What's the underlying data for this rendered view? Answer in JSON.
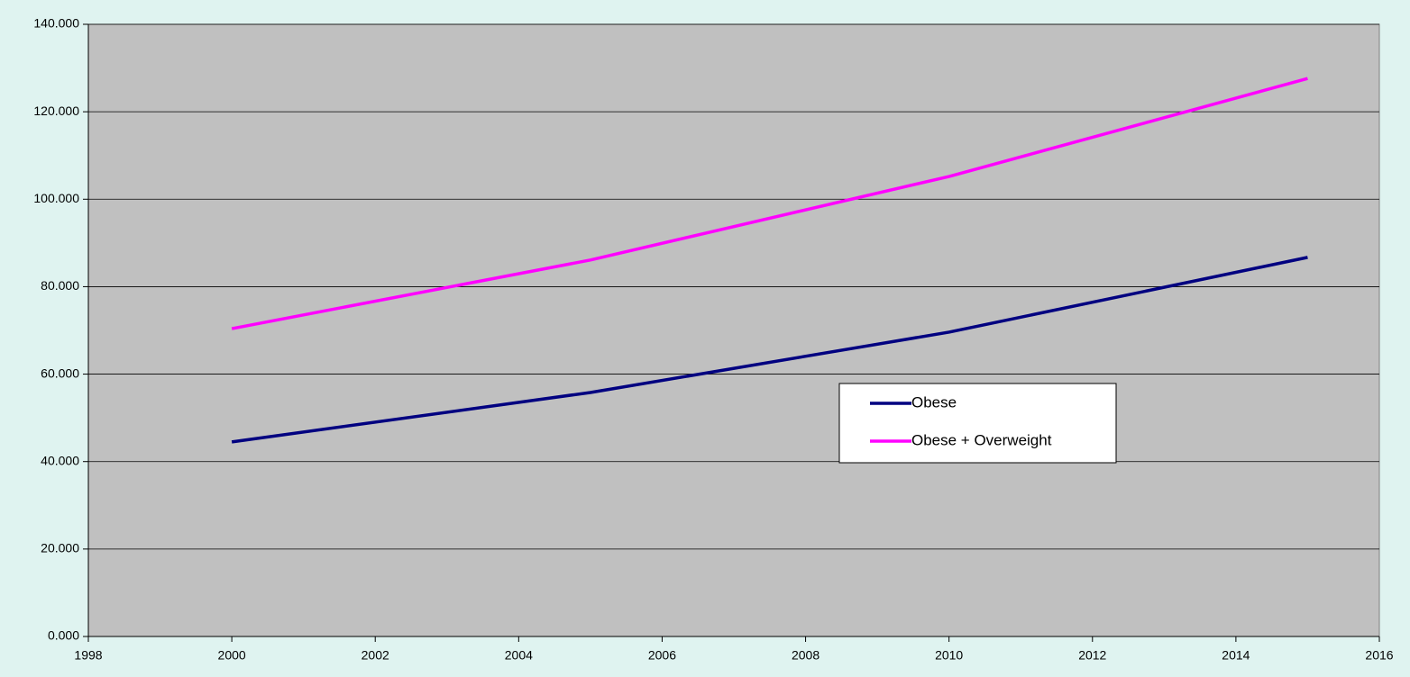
{
  "chart_data": {
    "type": "line",
    "x": [
      2000,
      2005,
      2010,
      2015
    ],
    "series": [
      {
        "name": "Obese",
        "color": "#000080",
        "values": [
          44.5,
          55.8,
          69.6,
          86.7
        ]
      },
      {
        "name": "Obese + Overweight",
        "color": "#ff00ff",
        "values": [
          70.4,
          86.1,
          105.2,
          127.6
        ]
      }
    ],
    "xlim": [
      1998,
      2016
    ],
    "xticks": [
      1998,
      2000,
      2002,
      2004,
      2006,
      2008,
      2010,
      2012,
      2014,
      2016
    ],
    "ylim": [
      0,
      140
    ],
    "yticks": [
      {
        "value": 0,
        "label": "0.000"
      },
      {
        "value": 20,
        "label": "20.000"
      },
      {
        "value": 40,
        "label": "40.000"
      },
      {
        "value": 60,
        "label": "60.000"
      },
      {
        "value": 80,
        "label": "80.000"
      },
      {
        "value": 100,
        "label": "100.000"
      },
      {
        "value": 120,
        "label": "120.000"
      },
      {
        "value": 140,
        "label": "140.000"
      }
    ],
    "grid": true,
    "legend": "right"
  }
}
